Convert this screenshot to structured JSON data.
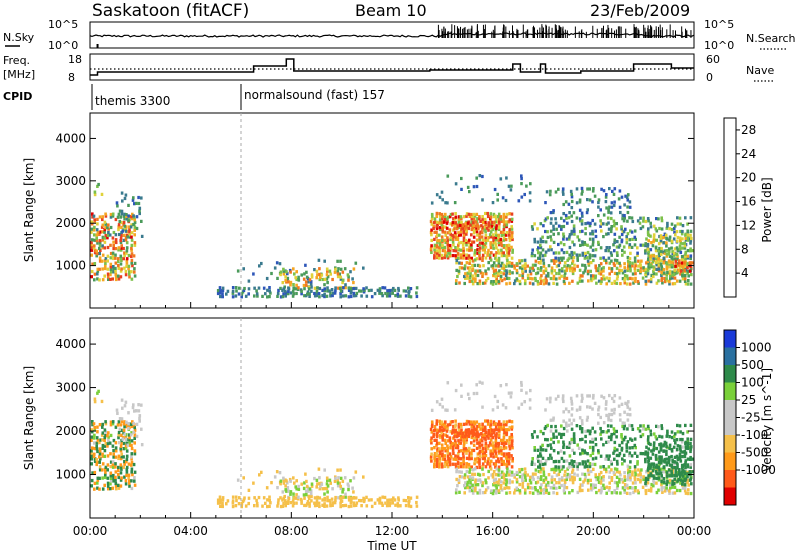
{
  "header": {
    "station": "Saskatoon (fitACF)",
    "beam": "Beam 10",
    "date": "23/Feb/2009"
  },
  "summary": {
    "left_label_sky": "N.Sky",
    "left_label_freq_top": "Freq.",
    "left_label_freq_unit": "[MHz]",
    "left_label_cpid": "CPID",
    "right_label_search": "N.Search",
    "right_label_nave": "Nave",
    "sky_tick_top": "10^5",
    "sky_tick_bottom": "10^0",
    "search_tick_top": "10^5",
    "search_tick_bottom": "10^0",
    "freq_tick_top": "18",
    "freq_tick_bottom": "8",
    "nave_tick_top": "60",
    "nave_tick_bottom": "0",
    "cpid_1": "themis 3300",
    "cpid_2": "normalsound (fast) 157"
  },
  "colors": {
    "power_scale": [
      "#1a28d8",
      "#2d56b8",
      "#3a7a8e",
      "#4a9a5a",
      "#7cc04a",
      "#e0d23a",
      "#f5a623",
      "#f07820",
      "#e84020",
      "#e00000"
    ],
    "velocity_scale": [
      "#e00000",
      "#ff5a1a",
      "#ff9a1a",
      "#f5c04a",
      "#c8c8c8",
      "#c8c8c8",
      "#7ad03a",
      "#2e8a4a",
      "#2a70a0",
      "#1a3ad8"
    ],
    "ground": "#c8c8c8"
  },
  "chart_data": [
    {
      "type": "heatmap",
      "title": "Power",
      "xlabel": "",
      "ylabel": "Slant Range [km]",
      "x_ticks": [
        "00:00",
        "04:00",
        "08:00",
        "12:00",
        "16:00",
        "20:00",
        "00:00"
      ],
      "y_ticks": [
        "1000",
        "2000",
        "3000",
        "4000"
      ],
      "ylim": [
        0,
        4600
      ],
      "colorbar_label": "Power [dB]",
      "colorbar_ticks": [
        "4",
        "8",
        "12",
        "16",
        "20",
        "24",
        "28"
      ],
      "colorbar_range": [
        0,
        30
      ]
    },
    {
      "type": "heatmap",
      "title": "Velocity",
      "xlabel": "Time UT",
      "ylabel": "Slant Range [km]",
      "x_ticks": [
        "00:00",
        "04:00",
        "08:00",
        "12:00",
        "16:00",
        "20:00",
        "00:00"
      ],
      "y_ticks": [
        "1000",
        "2000",
        "3000",
        "4000"
      ],
      "ylim": [
        0,
        4600
      ],
      "colorbar_label": "Velocity [m s^-1]",
      "colorbar_ticks": [
        "1000",
        "500",
        "100",
        "25",
        "-25",
        "-100",
        "-500",
        "-1000"
      ]
    }
  ]
}
